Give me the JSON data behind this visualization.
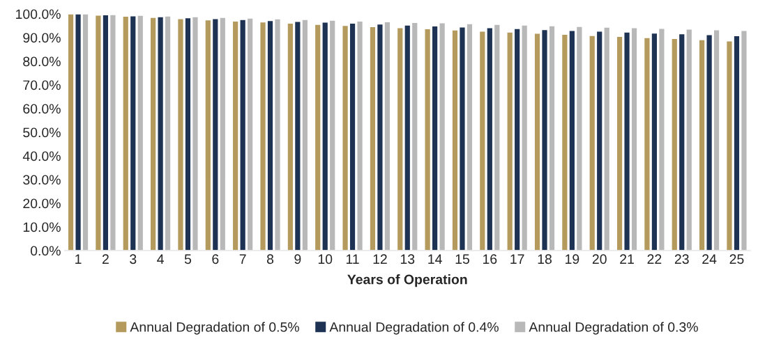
{
  "chart_data": {
    "type": "bar",
    "xlabel": "Years of Operation",
    "categories": [
      "1",
      "2",
      "3",
      "4",
      "5",
      "6",
      "7",
      "8",
      "9",
      "10",
      "11",
      "12",
      "13",
      "14",
      "15",
      "16",
      "17",
      "18",
      "19",
      "20",
      "21",
      "22",
      "23",
      "24",
      "25"
    ],
    "series": [
      {
        "name": "Annual Degradation of 0.5%",
        "color": "#b49a5c",
        "values": [
          100,
          99.5,
          99.0,
          98.5,
          98.0,
          97.5,
          97.0,
          96.6,
          96.1,
          95.6,
          95.1,
          94.6,
          94.2,
          93.7,
          93.2,
          92.7,
          92.3,
          91.8,
          91.4,
          90.9,
          90.5,
          90.0,
          89.6,
          89.1,
          88.6
        ]
      },
      {
        "name": "Annual Degradation of 0.4%",
        "color": "#1e3354",
        "values": [
          100,
          99.6,
          99.2,
          98.8,
          98.4,
          98.0,
          97.6,
          97.2,
          96.8,
          96.5,
          96.1,
          95.7,
          95.3,
          94.9,
          94.5,
          94.2,
          93.8,
          93.4,
          93.0,
          92.7,
          92.3,
          91.9,
          91.6,
          91.2,
          90.8
        ]
      },
      {
        "name": "Annual Degradation of 0.3%",
        "color": "#b8b8b8",
        "values": [
          100,
          99.7,
          99.4,
          99.1,
          98.8,
          98.5,
          98.2,
          97.9,
          97.6,
          97.3,
          97.0,
          96.7,
          96.4,
          96.2,
          95.9,
          95.6,
          95.3,
          95.0,
          94.7,
          94.4,
          94.2,
          93.9,
          93.6,
          93.3,
          93.0
        ]
      }
    ],
    "ylim": [
      0,
      100
    ],
    "yticks": [
      {
        "value": 0,
        "label": "0.0%"
      },
      {
        "value": 10,
        "label": "10.0%"
      },
      {
        "value": 20,
        "label": "20.0%"
      },
      {
        "value": 30,
        "label": "30.0%"
      },
      {
        "value": 40,
        "label": "40.0%"
      },
      {
        "value": 50,
        "label": "50.0%"
      },
      {
        "value": 60,
        "label": "60.0%"
      },
      {
        "value": 70,
        "label": "70.0%"
      },
      {
        "value": 80,
        "label": "80.0%"
      },
      {
        "value": 90,
        "label": "90.0%"
      },
      {
        "value": 100,
        "label": "100.0%"
      }
    ],
    "legend": "bottom",
    "grid": false
  }
}
